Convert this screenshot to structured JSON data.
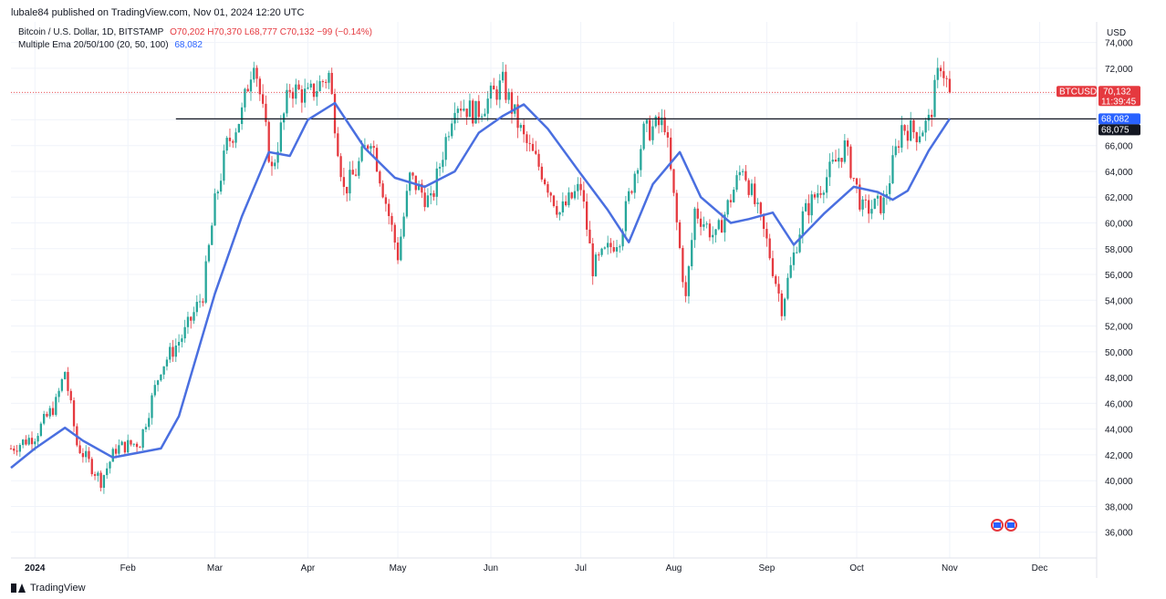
{
  "publisher": "lubale84 published on TradingView.com, Nov 01, 2024 12:20 UTC",
  "legend": {
    "symbol": "Bitcoin / U.S. Dollar, 1D, BITSTAMP",
    "ohlc": "O70,202 H70,370 L68,777 C70,132 −99 (−0.14%)",
    "indicator_name": "Multiple Ema 20/50/100 (20, 50, 100)",
    "indicator_value": "68,082"
  },
  "footer": {
    "brand": "TradingView"
  },
  "colors": {
    "up": "#26a69a",
    "down": "#e5393f",
    "ema": "#4a6fe0",
    "grid": "#f0f3fa",
    "level": "#131722"
  },
  "chart_data": {
    "type": "candlestick",
    "currency": "USD",
    "y_ticks": [
      36000,
      38000,
      40000,
      42000,
      44000,
      46000,
      48000,
      50000,
      52000,
      54000,
      56000,
      58000,
      60000,
      62000,
      64000,
      66000,
      68000,
      70000,
      72000,
      74000
    ],
    "y_tick_labels": [
      "36,000",
      "38,000",
      "40,000",
      "42,000",
      "44,000",
      "46,000",
      "48,000",
      "50,000",
      "52,000",
      "54,000",
      "56,000",
      "58,000",
      "60,000",
      "62,000",
      "64,000",
      "66,000",
      "68,000",
      "70,000",
      "72,000",
      "74,000"
    ],
    "x_labels": [
      "2024",
      "Feb",
      "Mar",
      "Apr",
      "May",
      "Jun",
      "Jul",
      "Aug",
      "Sep",
      "Oct",
      "Nov",
      "Dec"
    ],
    "x_label_dates": [
      "2024-01-01",
      "2024-02-01",
      "2024-03-01",
      "2024-04-01",
      "2024-05-01",
      "2024-06-01",
      "2024-07-01",
      "2024-08-01",
      "2024-09-01",
      "2024-10-01",
      "2024-11-01",
      "2024-12-01"
    ],
    "x_range": [
      "2023-12-24",
      "2024-12-20"
    ],
    "y_range": [
      34000,
      75600
    ],
    "price_path_dates": [
      "2023-12-24",
      "2024-01-01",
      "2024-01-08",
      "2024-01-11",
      "2024-01-15",
      "2024-01-23",
      "2024-01-28",
      "2024-02-05",
      "2024-02-12",
      "2024-02-20",
      "2024-02-26",
      "2024-03-01",
      "2024-03-05",
      "2024-03-10",
      "2024-03-14",
      "2024-03-20",
      "2024-03-26",
      "2024-04-01",
      "2024-04-08",
      "2024-04-13",
      "2024-04-17",
      "2024-04-22",
      "2024-05-01",
      "2024-05-05",
      "2024-05-12",
      "2024-05-20",
      "2024-05-27",
      "2024-06-05",
      "2024-06-12",
      "2024-06-18",
      "2024-06-24",
      "2024-07-01",
      "2024-07-05",
      "2024-07-14",
      "2024-07-22",
      "2024-07-29",
      "2024-08-05",
      "2024-08-08",
      "2024-08-15",
      "2024-08-24",
      "2024-09-01",
      "2024-09-06",
      "2024-09-13",
      "2024-09-27",
      "2024-10-03",
      "2024-10-10",
      "2024-10-16",
      "2024-10-21",
      "2024-10-25",
      "2024-10-29",
      "2024-11-01"
    ],
    "price_path": [
      42500,
      43500,
      46000,
      48500,
      42800,
      40000,
      42500,
      43000,
      48800,
      51500,
      54500,
      61500,
      66000,
      68500,
      73000,
      64000,
      70500,
      69800,
      71500,
      62500,
      64000,
      66800,
      57500,
      63500,
      61500,
      69500,
      68500,
      70800,
      66500,
      64000,
      60800,
      62800,
      56500,
      59000,
      67000,
      67800,
      54000,
      61000,
      58800,
      64500,
      58500,
      53500,
      60500,
      65900,
      61000,
      61500,
      67500,
      67000,
      67800,
      72500,
      70132
    ],
    "ema_dates": [
      "2023-12-24",
      "2024-01-01",
      "2024-01-11",
      "2024-01-17",
      "2024-01-27",
      "2024-02-12",
      "2024-02-18",
      "2024-03-01",
      "2024-03-10",
      "2024-03-19",
      "2024-03-26",
      "2024-04-01",
      "2024-04-10",
      "2024-04-20",
      "2024-04-30",
      "2024-05-10",
      "2024-05-20",
      "2024-05-28",
      "2024-06-05",
      "2024-06-12",
      "2024-06-20",
      "2024-07-01",
      "2024-07-10",
      "2024-07-17",
      "2024-07-25",
      "2024-08-03",
      "2024-08-10",
      "2024-08-20",
      "2024-08-26",
      "2024-09-03",
      "2024-09-10",
      "2024-09-20",
      "2024-09-30",
      "2024-10-08",
      "2024-10-13",
      "2024-10-18",
      "2024-10-25",
      "2024-11-01"
    ],
    "ema_path": [
      41000,
      42500,
      44100,
      43100,
      41800,
      42500,
      45000,
      54500,
      60500,
      65500,
      65200,
      68000,
      69300,
      65800,
      63500,
      62800,
      64000,
      67000,
      68300,
      69200,
      67300,
      63800,
      61000,
      58500,
      63000,
      65500,
      62000,
      60000,
      60300,
      60800,
      58300,
      60700,
      62800,
      62400,
      61800,
      62500,
      65600,
      68082
    ],
    "ema_label": "68,082",
    "horizontal_level": 68075,
    "horizontal_level_start": "2024-02-17",
    "horizontal_level_label": "68,075",
    "last_price": 70132,
    "last_price_label": "70,132",
    "countdown": "11:39:45",
    "symbol_tag": "BTCUSD"
  }
}
